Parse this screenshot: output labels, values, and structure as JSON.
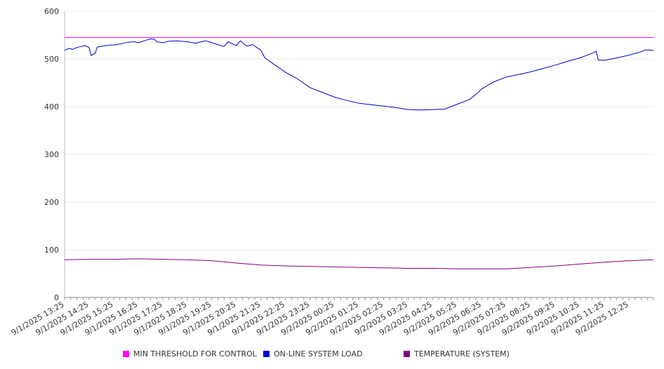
{
  "chart_data": {
    "type": "line",
    "ylim": [
      0,
      600
    ],
    "yticks": [
      0,
      100,
      200,
      300,
      400,
      500,
      600
    ],
    "x_tick_labels": [
      "9/1/2025 13:25",
      "9/1/2025 14:25",
      "9/1/2025 15:25",
      "9/1/2025 16:25",
      "9/1/2025 17:25",
      "9/1/2025 18:25",
      "9/1/2025 19:25",
      "9/1/2025 20:25",
      "9/1/2025 21:25",
      "9/1/2025 22:25",
      "9/1/2025 23:25",
      "9/2/2025 00:25",
      "9/2/2025 01:25",
      "9/2/2025 02:25",
      "9/2/2025 03:25",
      "9/2/2025 04:25",
      "9/2/2025 05:25",
      "9/2/2025 06:25",
      "9/2/2025 07:25",
      "9/2/2025 08:25",
      "9/2/2025 09:25",
      "9/2/2025 10:25",
      "9/2/2025 11:25",
      "9/2/2025 12:25"
    ],
    "x_start": "9/1/2025 13:25",
    "x_end": "9/2/2025 13:25",
    "grid": true,
    "legend_position": "bottom",
    "series": [
      {
        "name": "MIN THRESHOLD FOR CONTROL",
        "color": "#ff00ff",
        "points": [
          [
            "9/1/2025 13:25",
            545
          ],
          [
            "9/2/2025 13:25",
            545
          ]
        ]
      },
      {
        "name": "ON-LINE SYSTEM LOAD",
        "color": "#0000cc",
        "points": [
          [
            "9/1/2025 13:25",
            518
          ],
          [
            "9/1/2025 13:35",
            522
          ],
          [
            "9/1/2025 13:45",
            520
          ],
          [
            "9/1/2025 13:55",
            524
          ],
          [
            "9/1/2025 14:05",
            526
          ],
          [
            "9/1/2025 14:15",
            528
          ],
          [
            "9/1/2025 14:25",
            524
          ],
          [
            "9/1/2025 14:30",
            507
          ],
          [
            "9/1/2025 14:40",
            512
          ],
          [
            "9/1/2025 14:45",
            525
          ],
          [
            "9/1/2025 15:00",
            527
          ],
          [
            "9/1/2025 15:15",
            529
          ],
          [
            "9/1/2025 15:25",
            529
          ],
          [
            "9/1/2025 15:45",
            532
          ],
          [
            "9/1/2025 16:00",
            535
          ],
          [
            "9/1/2025 16:15",
            536
          ],
          [
            "9/1/2025 16:25",
            534
          ],
          [
            "9/1/2025 16:40",
            538
          ],
          [
            "9/1/2025 16:55",
            542
          ],
          [
            "9/1/2025 17:05",
            541
          ],
          [
            "9/1/2025 17:10",
            536
          ],
          [
            "9/1/2025 17:25",
            534
          ],
          [
            "9/1/2025 17:40",
            537
          ],
          [
            "9/1/2025 18:00",
            538
          ],
          [
            "9/1/2025 18:25",
            536
          ],
          [
            "9/1/2025 18:45",
            533
          ],
          [
            "9/1/2025 19:00",
            536
          ],
          [
            "9/1/2025 19:10",
            538
          ],
          [
            "9/1/2025 19:25",
            534
          ],
          [
            "9/1/2025 19:40",
            530
          ],
          [
            "9/1/2025 19:55",
            526
          ],
          [
            "9/1/2025 20:05",
            536
          ],
          [
            "9/1/2025 20:15",
            532
          ],
          [
            "9/1/2025 20:25",
            528
          ],
          [
            "9/1/2025 20:35",
            538
          ],
          [
            "9/1/2025 20:50",
            527
          ],
          [
            "9/1/2025 21:05",
            530
          ],
          [
            "9/1/2025 21:15",
            524
          ],
          [
            "9/1/2025 21:25",
            518
          ],
          [
            "9/1/2025 21:35",
            502
          ],
          [
            "9/1/2025 21:55",
            490
          ],
          [
            "9/1/2025 22:25",
            472
          ],
          [
            "9/1/2025 22:55",
            458
          ],
          [
            "9/1/2025 23:25",
            440
          ],
          [
            "9/1/2025 23:55",
            430
          ],
          [
            "9/2/2025 00:25",
            420
          ],
          [
            "9/2/2025 00:55",
            413
          ],
          [
            "9/2/2025 01:25",
            407
          ],
          [
            "9/2/2025 01:55",
            404
          ],
          [
            "9/2/2025 02:25",
            401
          ],
          [
            "9/2/2025 02:55",
            398
          ],
          [
            "9/2/2025 03:25",
            394
          ],
          [
            "9/2/2025 03:55",
            393
          ],
          [
            "9/2/2025 04:25",
            394
          ],
          [
            "9/2/2025 04:55",
            395
          ],
          [
            "9/2/2025 05:10",
            400
          ],
          [
            "9/2/2025 05:25",
            405
          ],
          [
            "9/2/2025 05:55",
            415
          ],
          [
            "9/2/2025 06:10",
            425
          ],
          [
            "9/2/2025 06:25",
            437
          ],
          [
            "9/2/2025 06:55",
            452
          ],
          [
            "9/2/2025 07:25",
            462
          ],
          [
            "9/2/2025 07:55",
            467
          ],
          [
            "9/2/2025 08:25",
            473
          ],
          [
            "9/2/2025 08:55",
            480
          ],
          [
            "9/2/2025 09:25",
            487
          ],
          [
            "9/2/2025 09:55",
            495
          ],
          [
            "9/2/2025 10:25",
            502
          ],
          [
            "9/2/2025 10:55",
            512
          ],
          [
            "9/2/2025 11:05",
            516
          ],
          [
            "9/2/2025 11:10",
            498
          ],
          [
            "9/2/2025 11:25",
            497
          ],
          [
            "9/2/2025 11:55",
            502
          ],
          [
            "9/2/2025 12:25",
            508
          ],
          [
            "9/2/2025 12:55",
            515
          ],
          [
            "9/2/2025 13:05",
            519
          ],
          [
            "9/2/2025 13:25",
            518
          ]
        ]
      },
      {
        "name": "TEMPERATURE (SYSTEM)",
        "color": "#800080",
        "points": [
          [
            "9/1/2025 13:25",
            79
          ],
          [
            "9/1/2025 14:25",
            80
          ],
          [
            "9/1/2025 15:25",
            80
          ],
          [
            "9/1/2025 16:25",
            81
          ],
          [
            "9/1/2025 17:25",
            80
          ],
          [
            "9/1/2025 18:25",
            79
          ],
          [
            "9/1/2025 19:25",
            77
          ],
          [
            "9/1/2025 20:25",
            72
          ],
          [
            "9/1/2025 21:25",
            68
          ],
          [
            "9/1/2025 22:25",
            66
          ],
          [
            "9/1/2025 23:25",
            65
          ],
          [
            "9/2/2025 00:25",
            64
          ],
          [
            "9/2/2025 01:25",
            63
          ],
          [
            "9/2/2025 02:25",
            62
          ],
          [
            "9/2/2025 03:25",
            61
          ],
          [
            "9/2/2025 04:25",
            61
          ],
          [
            "9/2/2025 05:25",
            60
          ],
          [
            "9/2/2025 06:25",
            60
          ],
          [
            "9/2/2025 07:25",
            60
          ],
          [
            "9/2/2025 08:25",
            63
          ],
          [
            "9/2/2025 09:25",
            66
          ],
          [
            "9/2/2025 10:25",
            70
          ],
          [
            "9/2/2025 11:25",
            74
          ],
          [
            "9/2/2025 12:25",
            77
          ],
          [
            "9/2/2025 13:25",
            79
          ]
        ]
      }
    ]
  },
  "legend": {
    "items": [
      {
        "label": "MIN THRESHOLD FOR CONTROL",
        "color": "#ff00ff"
      },
      {
        "label": "ON-LINE SYSTEM LOAD",
        "color": "#0000cc"
      },
      {
        "label": "TEMPERATURE (SYSTEM)",
        "color": "#800080"
      }
    ]
  }
}
